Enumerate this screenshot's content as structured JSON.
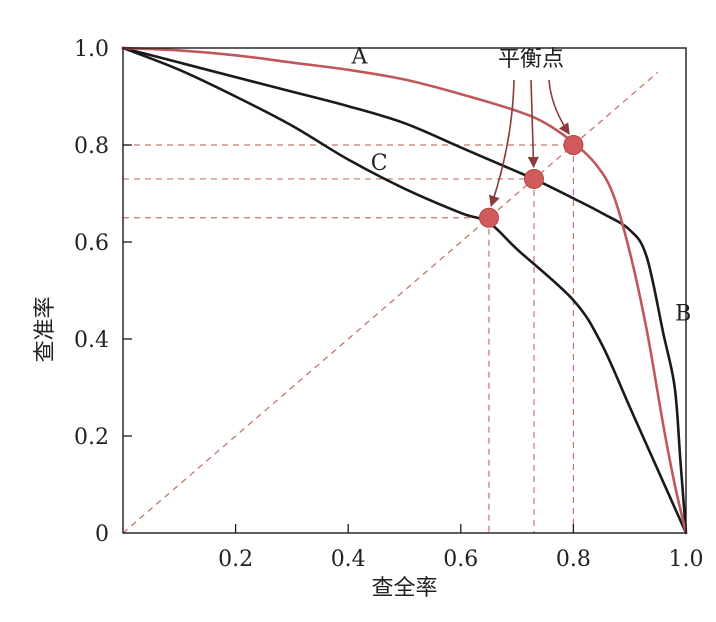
{
  "chart_data": {
    "type": "line",
    "xlabel": "查全率",
    "ylabel": "查准率",
    "xlim": [
      0,
      1
    ],
    "ylim": [
      0,
      1
    ],
    "x_ticks": [
      {
        "value": 0.2,
        "label": "0.2"
      },
      {
        "value": 0.4,
        "label": "0.4"
      },
      {
        "value": 0.6,
        "label": "0.6"
      },
      {
        "value": 0.8,
        "label": "0.8"
      },
      {
        "value": 1.0,
        "label": "1.0"
      }
    ],
    "y_ticks": [
      {
        "value": 0,
        "label": "0"
      },
      {
        "value": 0.2,
        "label": "0.2"
      },
      {
        "value": 0.4,
        "label": "0.4"
      },
      {
        "value": 0.6,
        "label": "0.6"
      },
      {
        "value": 0.8,
        "label": "0.8"
      },
      {
        "value": 1.0,
        "label": "1.0"
      }
    ],
    "series": [
      {
        "name": "A",
        "color": "#c0585a",
        "x": [
          0,
          0.1,
          0.2,
          0.3,
          0.4,
          0.5,
          0.6,
          0.7,
          0.75,
          0.8,
          0.84,
          0.87,
          0.9,
          0.93,
          0.96,
          0.98,
          1.0
        ],
        "y": [
          1.0,
          0.995,
          0.985,
          0.97,
          0.955,
          0.935,
          0.905,
          0.87,
          0.845,
          0.805,
          0.76,
          0.7,
          0.58,
          0.42,
          0.22,
          0.1,
          0
        ]
      },
      {
        "name": "B",
        "color": "#1a1a1a",
        "x": [
          0,
          0.1,
          0.2,
          0.3,
          0.4,
          0.5,
          0.6,
          0.7,
          0.73,
          0.8,
          0.85,
          0.9,
          0.93,
          0.96,
          0.98,
          0.99,
          1.0
        ],
        "y": [
          1.0,
          0.97,
          0.94,
          0.91,
          0.88,
          0.845,
          0.795,
          0.745,
          0.73,
          0.69,
          0.66,
          0.625,
          0.57,
          0.41,
          0.3,
          0.15,
          0
        ]
      },
      {
        "name": "C",
        "color": "#1a1a1a",
        "x": [
          0,
          0.1,
          0.2,
          0.3,
          0.4,
          0.5,
          0.6,
          0.65,
          0.7,
          0.8,
          0.85,
          0.9,
          0.95,
          1.0
        ],
        "y": [
          1.0,
          0.955,
          0.9,
          0.84,
          0.77,
          0.71,
          0.66,
          0.64,
          0.585,
          0.48,
          0.39,
          0.26,
          0.13,
          0
        ]
      }
    ],
    "curve_labels": [
      {
        "text": "A",
        "x": 0.42,
        "y": 0.985
      },
      {
        "text": "B",
        "x": 0.995,
        "y": 0.455
      },
      {
        "text": "C",
        "x": 0.455,
        "y": 0.765
      }
    ],
    "reference_line": {
      "x": [
        0,
        0.95
      ],
      "y": [
        0,
        0.95
      ],
      "style": "dashed",
      "color": "#c8746a"
    },
    "break_even_points": [
      {
        "x": 0.65,
        "y": 0.65
      },
      {
        "x": 0.73,
        "y": 0.73
      },
      {
        "x": 0.8,
        "y": 0.8
      }
    ],
    "annotation": {
      "text": "平衡点"
    },
    "point_color": "#d05a5c",
    "guide_color": "#c8746a",
    "grid": false
  }
}
